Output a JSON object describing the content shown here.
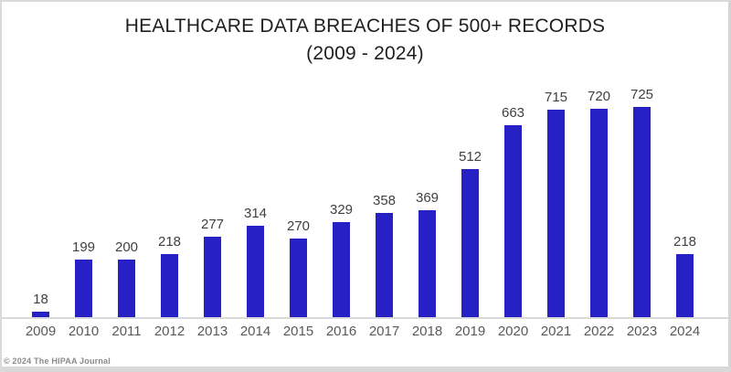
{
  "frame": {
    "copyright": "© 2024 The HIPAA Journal"
  },
  "chart_data": {
    "type": "bar",
    "title": "HEALTHCARE DATA BREACHES OF 500+ RECORDS",
    "subtitle": "(2009 - 2024)",
    "categories": [
      "2009",
      "2010",
      "2011",
      "2012",
      "2013",
      "2014",
      "2015",
      "2016",
      "2017",
      "2018",
      "2019",
      "2020",
      "2021",
      "2022",
      "2023",
      "2024"
    ],
    "values": [
      18,
      199,
      200,
      218,
      277,
      314,
      270,
      329,
      358,
      369,
      512,
      663,
      715,
      720,
      725,
      218
    ],
    "xlabel": "",
    "ylabel": "",
    "ylim": [
      0,
      760
    ],
    "grid": false,
    "legend": "none",
    "data_labels": true,
    "bar_color": "#2721C5",
    "label_color": "#404040",
    "axis_label_color": "#595959",
    "baseline_color": "#d9d9d9"
  }
}
